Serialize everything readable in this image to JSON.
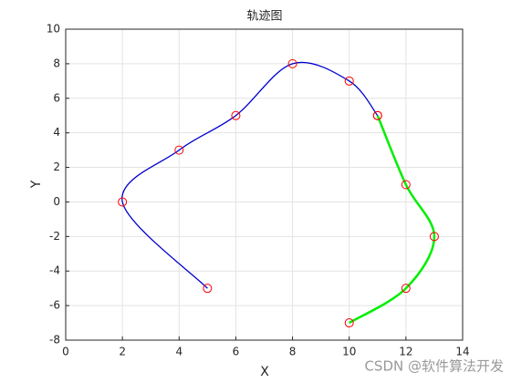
{
  "chart_data": {
    "type": "line",
    "title": "轨迹图",
    "xlabel": "X",
    "ylabel": "Y",
    "xlim": [
      0,
      14
    ],
    "xticks": [
      0,
      2,
      4,
      6,
      8,
      10,
      12,
      14
    ],
    "ylim": [
      -8,
      10
    ],
    "yticks": [
      -8,
      -6,
      -4,
      -2,
      0,
      2,
      4,
      6,
      8,
      10
    ],
    "grid": true,
    "marker_color": "#ff0000",
    "series": [
      {
        "color": "#0000cc",
        "x": [
          5,
          2,
          4,
          6,
          8,
          10,
          11
        ],
        "values": [
          -5,
          0,
          3,
          5,
          8,
          7,
          5
        ]
      },
      {
        "color": "#00ee00",
        "x": [
          11,
          12,
          13,
          12,
          10
        ],
        "values": [
          5,
          1,
          -2,
          -5,
          -7
        ]
      }
    ],
    "watermark": "CSDN @软件算法开发"
  }
}
